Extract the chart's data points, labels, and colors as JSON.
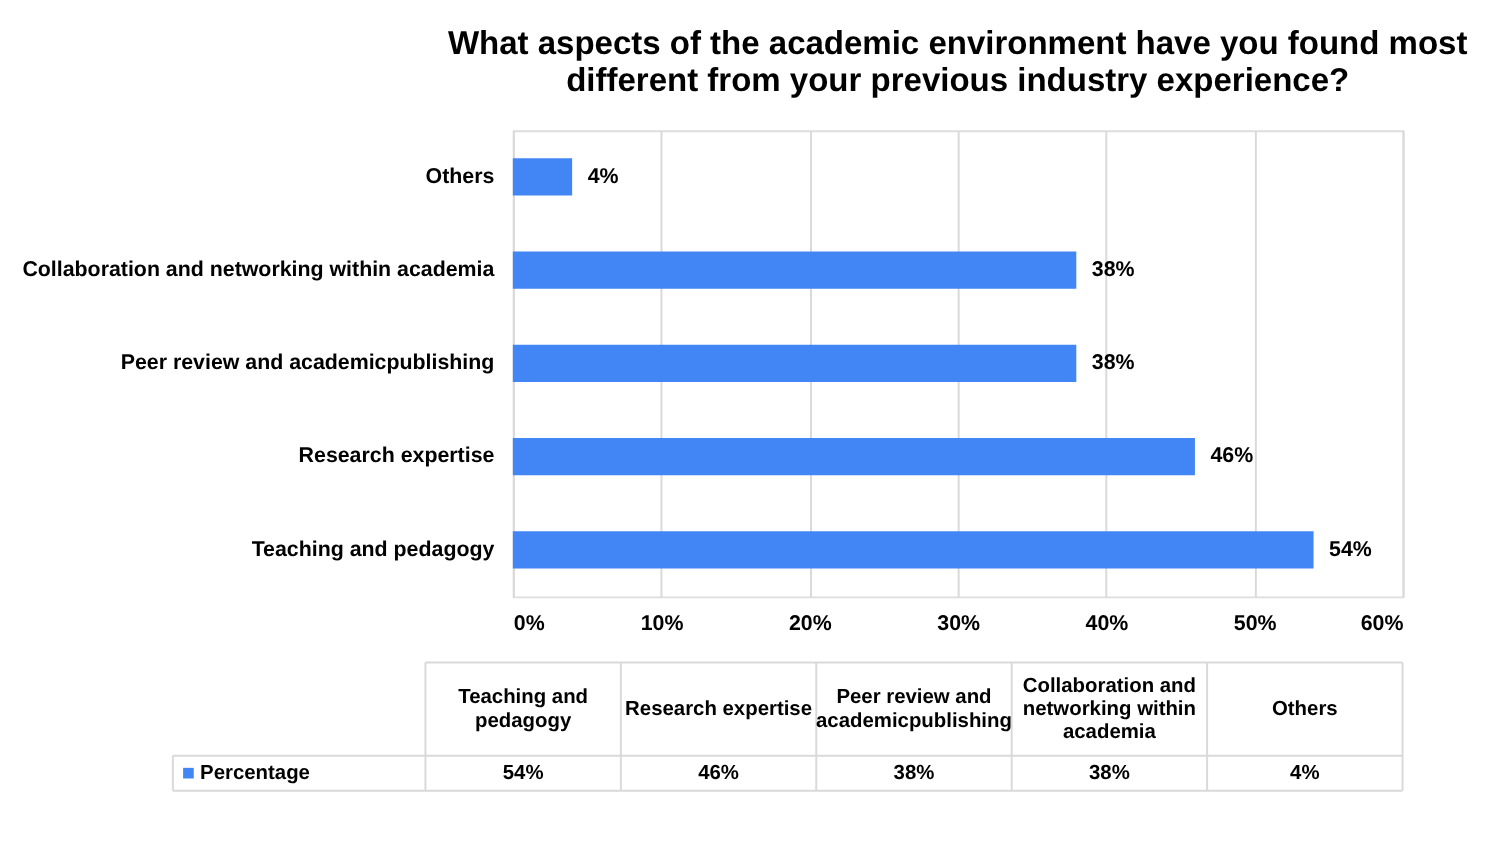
{
  "chart_data": {
    "type": "bar",
    "orientation": "horizontal",
    "title": "What aspects of the academic environment have you found most different from your previous industry experience?",
    "categories": [
      "Others",
      "Collaboration and networking within academia",
      "Peer review and academicpublishing",
      "Research expertise",
      "Teaching and pedagogy"
    ],
    "series": [
      {
        "name": "Percentage",
        "color": "#4285f4",
        "values": [
          4,
          38,
          38,
          46,
          54
        ],
        "value_labels": [
          "4%",
          "38%",
          "38%",
          "46%",
          "54%"
        ]
      }
    ],
    "xlim": [
      0,
      60
    ],
    "xticks": [
      {
        "value": 0,
        "label": "0%"
      },
      {
        "value": 10,
        "label": "10%"
      },
      {
        "value": 20,
        "label": "20%"
      },
      {
        "value": 30,
        "label": "30%"
      },
      {
        "value": 40,
        "label": "40%"
      },
      {
        "value": 50,
        "label": "50%"
      },
      {
        "value": 60,
        "label": "60%"
      }
    ],
    "grid": "x",
    "legend": "bottom"
  }
}
